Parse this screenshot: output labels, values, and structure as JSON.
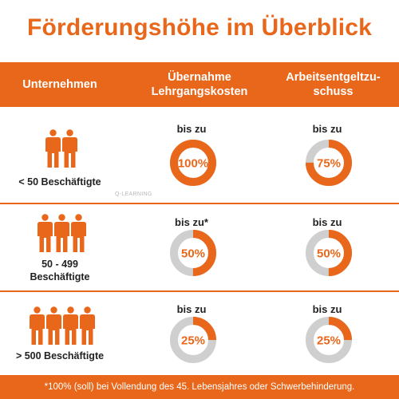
{
  "title": "Förderungshöhe im Überblick",
  "header": {
    "col1": "Unternehmen",
    "col2_line1": "Übernahme",
    "col2_line2": "Lehrgangskosten",
    "col3_line1": "Arbeitsentgeltzu-",
    "col3_line2": "schuss"
  },
  "colors": {
    "accent": "#e8671b",
    "ring_track": "#cfcfcf"
  },
  "icons": {
    "person": "person-icon"
  },
  "rows": [
    {
      "company_line1": "< 50 Beschäftigte",
      "company_line2": "",
      "people_count": 2,
      "course": {
        "prefix": "bis zu",
        "label": "100%",
        "percent": 100
      },
      "wage": {
        "prefix": "bis zu",
        "label": "75%",
        "percent": 75
      }
    },
    {
      "company_line1": "50 - 499",
      "company_line2": "Beschäftigte",
      "people_count": 3,
      "course": {
        "prefix": "bis zu*",
        "label": "50%",
        "percent": 50
      },
      "wage": {
        "prefix": "bis zu",
        "label": "50%",
        "percent": 50
      }
    },
    {
      "company_line1": "> 500 Beschäftigte",
      "company_line2": "",
      "people_count": 4,
      "course": {
        "prefix": "bis zu",
        "label": "25%",
        "percent": 25
      },
      "wage": {
        "prefix": "bis zu",
        "label": "25%",
        "percent": 25
      }
    }
  ],
  "watermark": "Q-LEARNING",
  "footer": "*100% (soll) bei Vollendung des 45. Lebensjahres oder Schwerbehinderung."
}
